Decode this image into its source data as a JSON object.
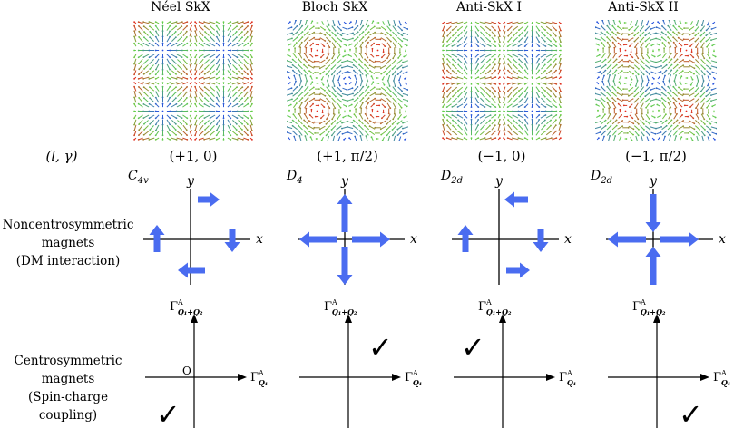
{
  "columns": [
    {
      "title": "Néel SkX",
      "param": "(+1, 0)",
      "symmetry": "C",
      "symmetry_sub": "4v",
      "arrows": "neel",
      "check_quadrant": "III",
      "show_origin": true,
      "skx": "neel"
    },
    {
      "title": "Bloch SkX",
      "param": "(+1, π/2)",
      "symmetry": "D",
      "symmetry_sub": "4",
      "arrows": "bloch",
      "check_quadrant": "I",
      "show_origin": false,
      "skx": "bloch"
    },
    {
      "title": "Anti-SkX I",
      "param": "(−1, 0)",
      "symmetry": "D",
      "symmetry_sub": "2d",
      "arrows": "anti1",
      "check_quadrant": "II",
      "show_origin": false,
      "skx": "anti1"
    },
    {
      "title": "Anti-SkX II",
      "param": "(−1, π/2)",
      "symmetry": "D",
      "symmetry_sub": "2d",
      "arrows": "anti2",
      "check_quadrant": "IV",
      "show_origin": false,
      "skx": "anti2"
    }
  ],
  "row_labels": {
    "param": "(l, γ)",
    "noncentro": [
      "Noncentrosymmetric",
      "magnets",
      "(DM interaction)"
    ],
    "centro": [
      "Centrosymmetric",
      "magnets",
      "(Spin-charge coupling)"
    ]
  },
  "axes": {
    "x": "x",
    "y": "y",
    "origin": "O"
  },
  "gamma_axes": {
    "base": "Γ",
    "sup": "A",
    "vertical_sub": "Q₁+Q₂",
    "horizontal_sub": "Q₁"
  },
  "colors": {
    "arrow": "#4a6cf0",
    "vec_low": "#3050e0",
    "vec_mid": "#50c040",
    "vec_high": "#d02020"
  },
  "checkmark": "✓"
}
